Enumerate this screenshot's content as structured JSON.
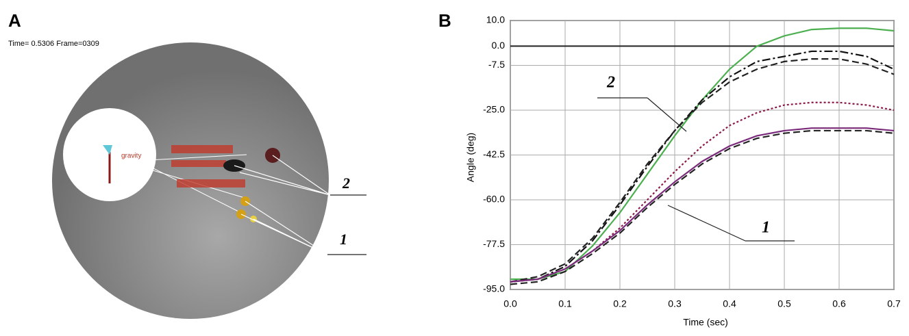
{
  "panel_a": {
    "label": "A",
    "status": "Time= 0.5306 Frame=0309",
    "gravity": "gravity",
    "callouts": [
      "2",
      "1"
    ]
  },
  "chart_data": {
    "type": "line",
    "label": "B",
    "x_label": "Time (sec)",
    "y_label": "Angle (deg)",
    "x": [
      0,
      0.05,
      0.1,
      0.15,
      0.2,
      0.25,
      0.3,
      0.35,
      0.4,
      0.45,
      0.5,
      0.55,
      0.6,
      0.65,
      0.7
    ],
    "xlim": [
      0,
      0.7
    ],
    "xticks": [
      {
        "value": 0,
        "label": "0.0"
      },
      0.1,
      0.2,
      0.3,
      0.4,
      0.5,
      0.6,
      0.7
    ],
    "ylim": [
      -95,
      10
    ],
    "yticks": [
      {
        "value": 10,
        "label": "10.0"
      },
      {
        "value": 0,
        "label": "0.0"
      },
      -7.5,
      {
        "value": -25,
        "label": "-25.0"
      },
      -42.5,
      {
        "value": -60,
        "label": "-60.0"
      },
      -77.5,
      {
        "value": -95,
        "label": "-95.0"
      }
    ],
    "grid": true,
    "series": [
      {
        "color": "#4caf50",
        "style": "solid",
        "values": [
          -91,
          -91,
          -88,
          -78,
          -65,
          -50,
          -35,
          -21,
          -9,
          0,
          4,
          6.5,
          7,
          7,
          6
        ]
      },
      {
        "color": "#111111",
        "style": "dashdot",
        "values": [
          -92,
          -91,
          -86,
          -76,
          -62,
          -47,
          -33,
          -21,
          -12,
          -6,
          -4,
          -2,
          -2,
          -4,
          -9
        ]
      },
      {
        "color": "#222222",
        "style": "dashed",
        "values": [
          -92,
          -90,
          -85,
          -75,
          -61,
          -46,
          -33,
          -22,
          -14,
          -9,
          -6,
          -5,
          -5,
          -7,
          -11
        ]
      },
      {
        "color": "#8b1a4a",
        "style": "dotted",
        "values": [
          -92,
          -91,
          -87,
          -80,
          -71,
          -60,
          -49,
          -39,
          -31,
          -26,
          -23,
          -22,
          -22,
          -23,
          -25
        ]
      },
      {
        "color": "#7a2a7a",
        "style": "solid",
        "values": [
          -92,
          -91,
          -87,
          -80,
          -72,
          -62,
          -53,
          -45,
          -39,
          -35,
          -33,
          -32,
          -32,
          -32,
          -33
        ]
      },
      {
        "color": "#222222",
        "style": "dashed",
        "values": [
          -93,
          -92,
          -88,
          -81,
          -73,
          -63,
          -54,
          -46,
          -40,
          -36,
          -34,
          -33,
          -33,
          -33,
          -34
        ]
      }
    ],
    "annotations": [
      "2",
      "1"
    ]
  }
}
